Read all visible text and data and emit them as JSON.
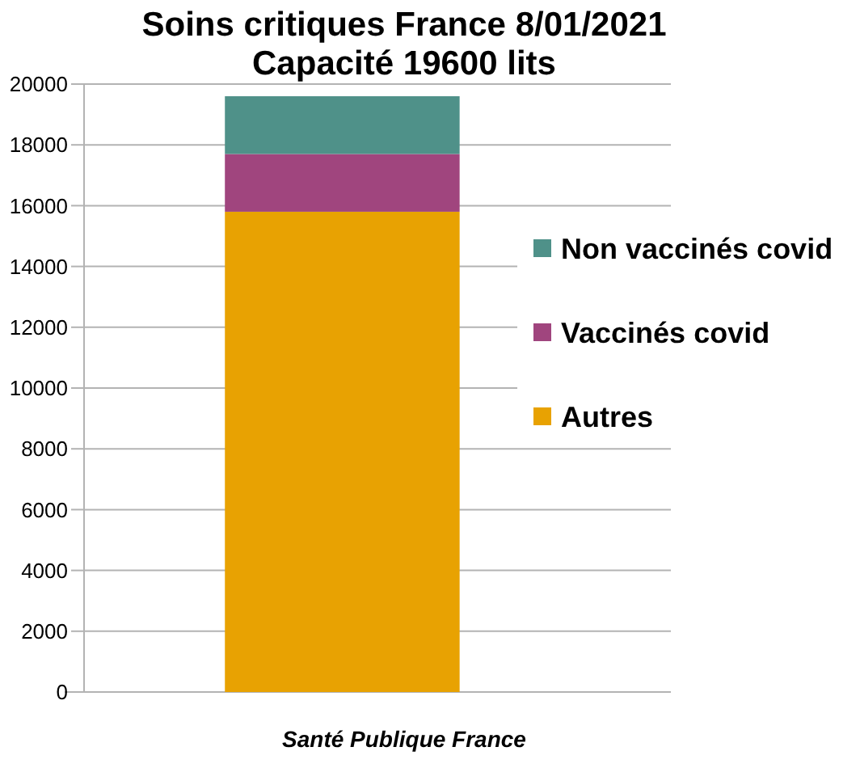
{
  "chart_data": {
    "type": "bar",
    "title": "Soins critiques France 8/01/2021",
    "subtitle": "Capacité 19600 lits",
    "categories": [
      null
    ],
    "stacked": true,
    "series": [
      {
        "name": "Autres",
        "color": "#e8a202",
        "values": [
          15800
        ]
      },
      {
        "name": "Vaccinés covid",
        "color": "#a0457e",
        "values": [
          1900
        ]
      },
      {
        "name": "Non vaccinés covid",
        "color": "#4f9189",
        "values": [
          1900
        ]
      }
    ],
    "ylim": [
      0,
      20000
    ],
    "yticks": [
      0,
      2000,
      4000,
      6000,
      8000,
      10000,
      12000,
      14000,
      16000,
      18000,
      20000
    ],
    "grid": "y",
    "legend": "right",
    "annotations": [
      "Santé Publique France"
    ]
  }
}
